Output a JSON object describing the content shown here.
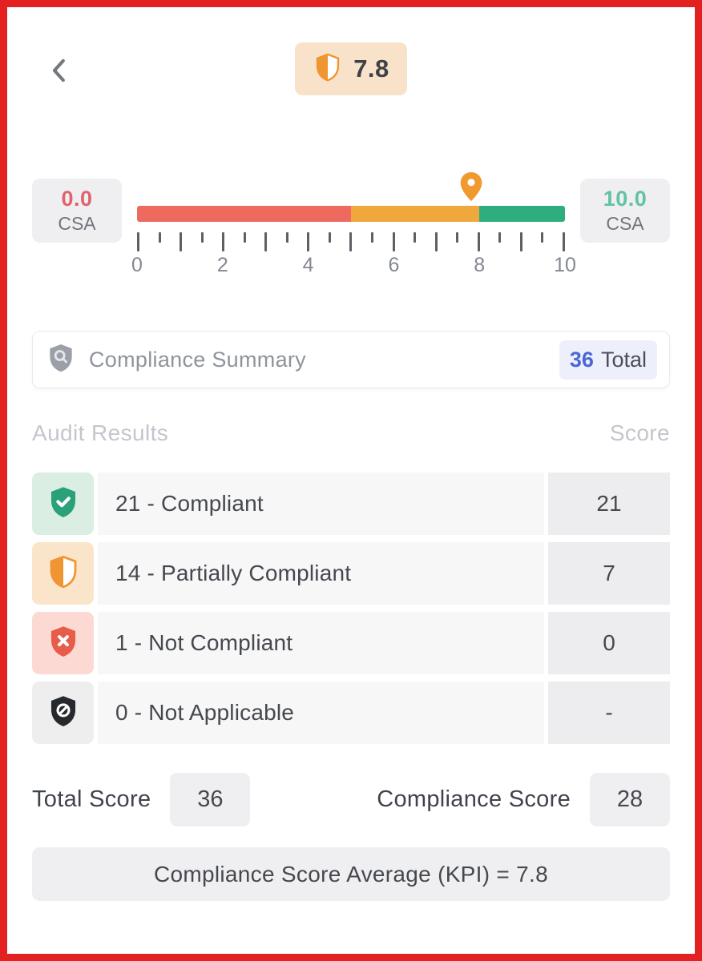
{
  "colors": {
    "frame_border": "#e32121",
    "score_badge_bg": "#f8e3ca",
    "gauge_red": "#ee6a5f",
    "gauge_orange": "#f0a83d",
    "gauge_green": "#2fad7d",
    "marker_orange": "#f0992e",
    "min_value_color": "#e0636d",
    "max_value_color": "#62c2a4",
    "total_badge_bg": "#edf0fb",
    "total_count_color": "#4a67d6",
    "neutral_box_bg": "#efeff1"
  },
  "header": {
    "score_badge_value": "7.8"
  },
  "gauge": {
    "min_box": {
      "value": "0.0",
      "unit": "CSA"
    },
    "max_box": {
      "value": "10.0",
      "unit": "CSA"
    },
    "marker_value": 7.8,
    "axis": {
      "min": 0,
      "max": 10,
      "tick_step": 0.5,
      "labels": [
        "0",
        "2",
        "4",
        "6",
        "8",
        "10"
      ]
    },
    "segments": [
      {
        "from": 0,
        "to": 5,
        "color": "#ee6a5f"
      },
      {
        "from": 5,
        "to": 8,
        "color": "#f0a83d"
      },
      {
        "from": 8,
        "to": 10,
        "color": "#2fad7d"
      }
    ]
  },
  "summary_bar": {
    "title": "Compliance Summary",
    "total_count": "36",
    "total_label": "Total"
  },
  "results_table": {
    "left_header": "Audit Results",
    "right_header": "Score",
    "rows": [
      {
        "icon": "shield-check-icon",
        "label": "21 - Compliant",
        "score": "21",
        "icon_bg": "#daeee4",
        "icon_color": "#2aa179"
      },
      {
        "icon": "shield-half-icon",
        "label": "14 - Partially Compliant",
        "score": "7",
        "icon_bg": "#fbe5ca",
        "icon_color": "#ef9532"
      },
      {
        "icon": "shield-x-icon",
        "label": "1 - Not Compliant",
        "score": "0",
        "icon_bg": "#fcd9d3",
        "icon_color": "#e85c4a"
      },
      {
        "icon": "shield-block-icon",
        "label": "0 - Not Applicable",
        "score": "-",
        "icon_bg": "#eeeeef",
        "icon_color": "#26292e"
      }
    ]
  },
  "totals": {
    "total_score_label": "Total Score",
    "total_score_value": "36",
    "compliance_score_label": "Compliance Score",
    "compliance_score_value": "28"
  },
  "kpi_bar": {
    "text": "Compliance Score Average (KPI) = 7.8"
  }
}
